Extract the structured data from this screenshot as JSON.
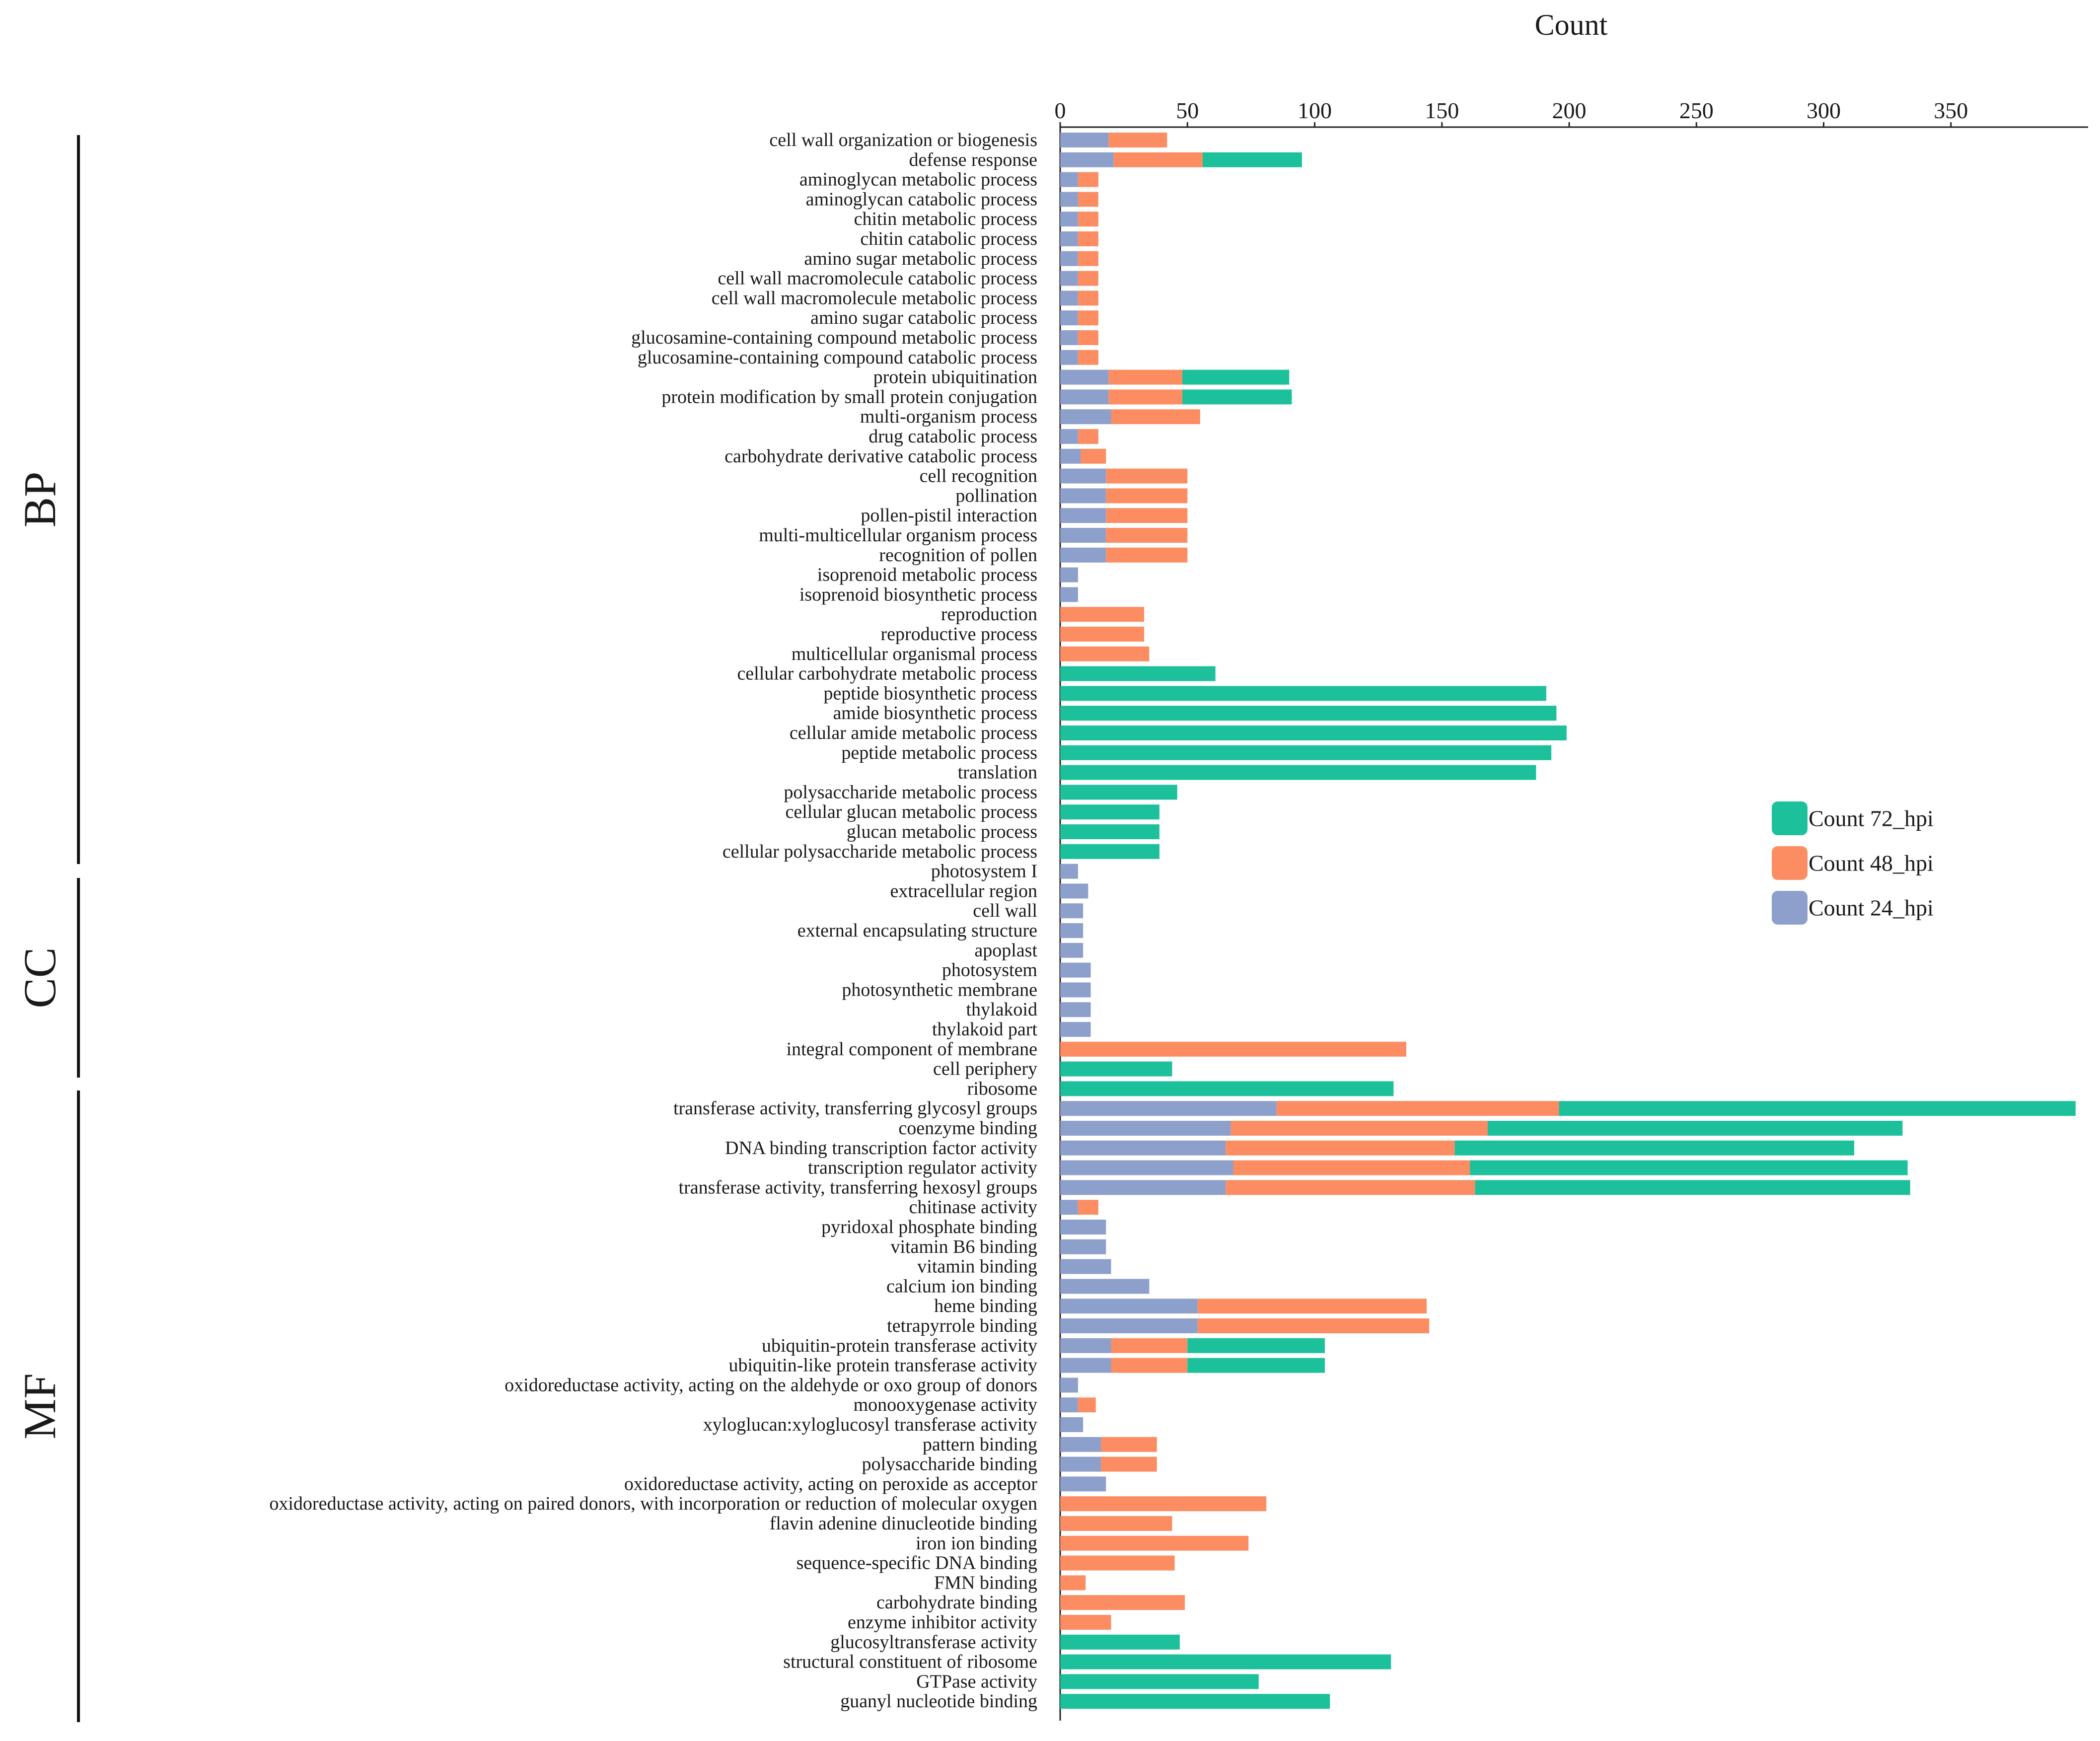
{
  "chart_data": {
    "type": "bar",
    "stacked": true,
    "orientation": "horizontal",
    "title": "",
    "xlabel": "Count",
    "ylabel": "",
    "xlim": [
      0,
      400
    ],
    "xticks": [
      0,
      50,
      100,
      150,
      200,
      250,
      300,
      350
    ],
    "legend": [
      "Count 72_hpi",
      "Count 48_hpi",
      "Count 24_hpi"
    ],
    "legend_position": "right",
    "colors": {
      "Count 24_hpi": "#8da0cb",
      "Count 48_hpi": "#fc8d62",
      "Count 72_hpi": "#1cc19c"
    },
    "groups": [
      {
        "name": "BP",
        "first": 0,
        "last": 37
      },
      {
        "name": "CC",
        "first": 38,
        "last": 48
      },
      {
        "name": "MF",
        "first": 49,
        "last": 80
      }
    ],
    "categories": [
      "cell wall organization or biogenesis",
      "defense response",
      "aminoglycan metabolic process",
      "aminoglycan catabolic process",
      "chitin metabolic process",
      "chitin catabolic process",
      "amino sugar metabolic process",
      "cell wall macromolecule catabolic process",
      "cell wall macromolecule metabolic process",
      "amino sugar catabolic process",
      "glucosamine-containing compound metabolic process",
      "glucosamine-containing compound catabolic process",
      "protein ubiquitination",
      "protein modification by small protein conjugation",
      "multi-organism process",
      "drug catabolic process",
      "carbohydrate derivative catabolic process",
      "cell recognition",
      "pollination",
      "pollen-pistil interaction",
      "multi-multicellular organism process",
      "recognition of pollen",
      "isoprenoid metabolic process",
      "isoprenoid biosynthetic process",
      "reproduction",
      "reproductive process",
      "multicellular organismal process",
      "cellular carbohydrate metabolic process",
      "peptide biosynthetic process",
      "amide biosynthetic process",
      "cellular amide metabolic process",
      "peptide metabolic process",
      "translation",
      "polysaccharide metabolic process",
      "cellular glucan metabolic process",
      "glucan metabolic process",
      "cellular polysaccharide metabolic process",
      "photosystem I",
      "extracellular region",
      "cell wall",
      "external encapsulating structure",
      "apoplast",
      "photosystem",
      "photosynthetic membrane",
      "thylakoid",
      "thylakoid part",
      "integral component of membrane",
      "cell periphery",
      "ribosome",
      "transferase activity, transferring glycosyl groups",
      "coenzyme binding",
      "DNA binding transcription factor activity",
      "transcription regulator activity",
      "transferase activity, transferring hexosyl groups",
      "chitinase activity",
      "pyridoxal phosphate binding",
      "vitamin B6 binding",
      "vitamin binding",
      "calcium ion binding",
      "heme binding",
      "tetrapyrrole binding",
      "ubiquitin-protein transferase activity",
      "ubiquitin-like protein transferase activity",
      "oxidoreductase activity, acting on the aldehyde or oxo group of donors",
      "monooxygenase activity",
      "xyloglucan:xyloglucosyl transferase activity",
      "pattern binding",
      "polysaccharide binding",
      "oxidoreductase activity, acting on peroxide as acceptor",
      "oxidoreductase activity, acting on paired donors, with incorporation or reduction of molecular oxygen",
      "flavin adenine dinucleotide binding",
      "iron ion binding",
      "sequence-specific DNA binding",
      "FMN binding",
      "carbohydrate binding",
      "enzyme inhibitor activity",
      "glucosyltransferase activity",
      "structural constituent of ribosome",
      "GTPase activity",
      "guanyl nucleotide binding"
    ],
    "series": [
      {
        "name": "Count 24_hpi",
        "values": [
          19,
          21,
          7,
          7,
          7,
          7,
          7,
          7,
          7,
          7,
          7,
          7,
          19,
          19,
          20,
          7,
          8,
          18,
          18,
          18,
          18,
          18,
          7,
          7,
          0,
          0,
          0,
          0,
          0,
          0,
          0,
          0,
          0,
          0,
          0,
          0,
          0,
          7,
          11,
          9,
          9,
          9,
          12,
          12,
          12,
          12,
          0,
          0,
          0,
          85,
          67,
          65,
          68,
          65,
          7,
          18,
          18,
          20,
          35,
          54,
          54,
          20,
          20,
          7,
          7,
          9,
          16,
          16,
          18,
          0,
          0,
          0,
          0,
          0,
          0,
          0,
          0,
          0,
          0,
          0
        ]
      },
      {
        "name": "Count 48_hpi",
        "values": [
          23,
          35,
          8,
          8,
          8,
          8,
          8,
          8,
          8,
          8,
          8,
          8,
          29,
          29,
          35,
          8,
          10,
          32,
          32,
          32,
          32,
          32,
          0,
          0,
          33,
          33,
          35,
          0,
          0,
          0,
          0,
          0,
          0,
          0,
          0,
          0,
          0,
          0,
          0,
          0,
          0,
          0,
          0,
          0,
          0,
          0,
          136,
          0,
          0,
          111,
          101,
          90,
          93,
          98,
          8,
          0,
          0,
          0,
          0,
          90,
          91,
          30,
          30,
          0,
          7,
          0,
          22,
          22,
          0,
          81,
          44,
          74,
          45,
          10,
          49,
          20,
          0,
          0,
          0,
          0
        ]
      },
      {
        "name": "Count 72_hpi",
        "values": [
          0,
          39,
          0,
          0,
          0,
          0,
          0,
          0,
          0,
          0,
          0,
          0,
          42,
          43,
          0,
          0,
          0,
          0,
          0,
          0,
          0,
          0,
          0,
          0,
          0,
          0,
          0,
          61,
          191,
          195,
          199,
          193,
          187,
          46,
          39,
          39,
          39,
          0,
          0,
          0,
          0,
          0,
          0,
          0,
          0,
          0,
          0,
          44,
          131,
          203,
          163,
          157,
          172,
          171,
          0,
          0,
          0,
          0,
          0,
          0,
          0,
          54,
          54,
          0,
          0,
          0,
          0,
          0,
          0,
          0,
          0,
          0,
          0,
          0,
          0,
          0,
          47,
          130,
          78,
          106
        ]
      }
    ]
  }
}
